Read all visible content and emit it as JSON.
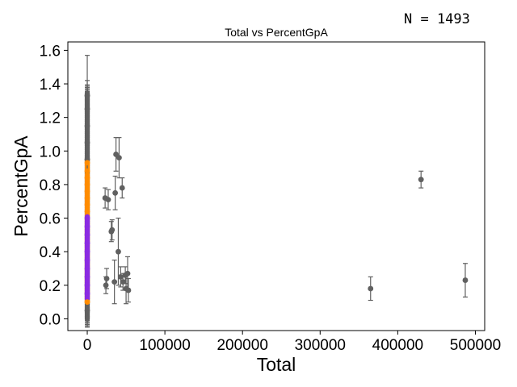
{
  "annotation": {
    "n_label": "N = 1493"
  },
  "chart_data": {
    "type": "scatter",
    "title": "Total vs PercentGpA",
    "xlabel": "Total",
    "ylabel": "PercentGpA",
    "xlim": [
      -25000,
      512000
    ],
    "ylim": [
      -0.07,
      1.65
    ],
    "xticks": [
      0,
      100000,
      200000,
      300000,
      400000,
      500000
    ],
    "yticks": [
      0.0,
      0.2,
      0.4,
      0.6,
      0.8,
      1.0,
      1.2,
      1.4,
      1.6
    ],
    "grid": false,
    "colors": {
      "gray": "#606060",
      "orange": "#ff8c00",
      "purple": "#8a2be2",
      "errorbar": "#606060"
    },
    "points": [
      {
        "x": 0,
        "y": 1.33,
        "err": 0.24,
        "color": "gray"
      },
      {
        "x": 0,
        "y": 1.25,
        "err": 0.17,
        "color": "gray"
      },
      {
        "x": 0,
        "y": 1.15,
        "err": 0.12,
        "color": "gray"
      },
      {
        "x": 0,
        "y": 1.05,
        "err": 0.1,
        "color": "gray"
      },
      {
        "x": 0,
        "y": 0.95,
        "err": 0.08,
        "color": "gray"
      },
      {
        "x": 0,
        "y": 0.05,
        "err": 0.04,
        "color": "gray"
      },
      {
        "x": 23000,
        "y": 0.72,
        "err": 0.06,
        "color": "gray"
      },
      {
        "x": 27000,
        "y": 0.71,
        "err": 0.06,
        "color": "gray"
      },
      {
        "x": 25000,
        "y": 0.24,
        "err": 0.06,
        "color": "gray"
      },
      {
        "x": 24000,
        "y": 0.2,
        "err": 0.05,
        "color": "gray"
      },
      {
        "x": 31000,
        "y": 0.52,
        "err": 0.06,
        "color": "gray"
      },
      {
        "x": 32000,
        "y": 0.53,
        "err": 0.06,
        "color": "gray"
      },
      {
        "x": 36000,
        "y": 0.75,
        "err": 0.1,
        "color": "gray"
      },
      {
        "x": 37000,
        "y": 0.98,
        "err": 0.1,
        "color": "gray"
      },
      {
        "x": 41000,
        "y": 0.96,
        "err": 0.12,
        "color": "gray"
      },
      {
        "x": 45000,
        "y": 0.78,
        "err": 0.06,
        "color": "gray"
      },
      {
        "x": 40000,
        "y": 0.4,
        "err": 0.2,
        "color": "gray"
      },
      {
        "x": 35000,
        "y": 0.22,
        "err": 0.13,
        "color": "gray"
      },
      {
        "x": 43000,
        "y": 0.25,
        "err": 0.06,
        "color": "gray"
      },
      {
        "x": 46000,
        "y": 0.22,
        "err": 0.05,
        "color": "gray"
      },
      {
        "x": 49000,
        "y": 0.26,
        "err": 0.05,
        "color": "gray"
      },
      {
        "x": 52000,
        "y": 0.27,
        "err": 0.1,
        "color": "gray"
      },
      {
        "x": 50000,
        "y": 0.18,
        "err": 0.09,
        "color": "gray"
      },
      {
        "x": 53000,
        "y": 0.17,
        "err": 0.07,
        "color": "gray"
      },
      {
        "x": 365000,
        "y": 0.18,
        "err": 0.07,
        "color": "gray"
      },
      {
        "x": 430000,
        "y": 0.83,
        "err": 0.05,
        "color": "gray"
      },
      {
        "x": 487000,
        "y": 0.23,
        "err": 0.1,
        "color": "gray"
      },
      {
        "x": 0,
        "y": 0.93,
        "err": 0,
        "color": "orange"
      },
      {
        "x": 0,
        "y": 0.88,
        "err": 0,
        "color": "orange"
      },
      {
        "x": 0,
        "y": 0.84,
        "err": 0,
        "color": "orange"
      },
      {
        "x": 0,
        "y": 0.8,
        "err": 0,
        "color": "orange"
      },
      {
        "x": 0,
        "y": 0.76,
        "err": 0,
        "color": "orange"
      },
      {
        "x": 0,
        "y": 0.72,
        "err": 0,
        "color": "orange"
      },
      {
        "x": 0,
        "y": 0.68,
        "err": 0,
        "color": "orange"
      },
      {
        "x": 0,
        "y": 0.64,
        "err": 0,
        "color": "orange"
      },
      {
        "x": 0,
        "y": 0.1,
        "err": 0,
        "color": "orange"
      },
      {
        "x": 0,
        "y": 0.6,
        "err": 0,
        "color": "purple"
      },
      {
        "x": 0,
        "y": 0.55,
        "err": 0,
        "color": "purple"
      },
      {
        "x": 0,
        "y": 0.5,
        "err": 0,
        "color": "purple"
      },
      {
        "x": 0,
        "y": 0.45,
        "err": 0,
        "color": "purple"
      },
      {
        "x": 0,
        "y": 0.4,
        "err": 0,
        "color": "purple"
      },
      {
        "x": 0,
        "y": 0.35,
        "err": 0,
        "color": "purple"
      },
      {
        "x": 0,
        "y": 0.3,
        "err": 0,
        "color": "purple"
      },
      {
        "x": 0,
        "y": 0.25,
        "err": 0,
        "color": "purple"
      },
      {
        "x": 0,
        "y": 0.2,
        "err": 0,
        "color": "purple"
      },
      {
        "x": 0,
        "y": 0.15,
        "err": 0,
        "color": "purple"
      }
    ],
    "dense_bands": [
      {
        "x": 0,
        "y_from": 0.0,
        "y_to": 1.35,
        "err": 0.05,
        "color": "gray"
      },
      {
        "x": 0,
        "y_from": 0.1,
        "y_to": 0.95,
        "color": "orange"
      },
      {
        "x": 0,
        "y_from": 0.12,
        "y_to": 0.61,
        "color": "purple"
      }
    ]
  }
}
